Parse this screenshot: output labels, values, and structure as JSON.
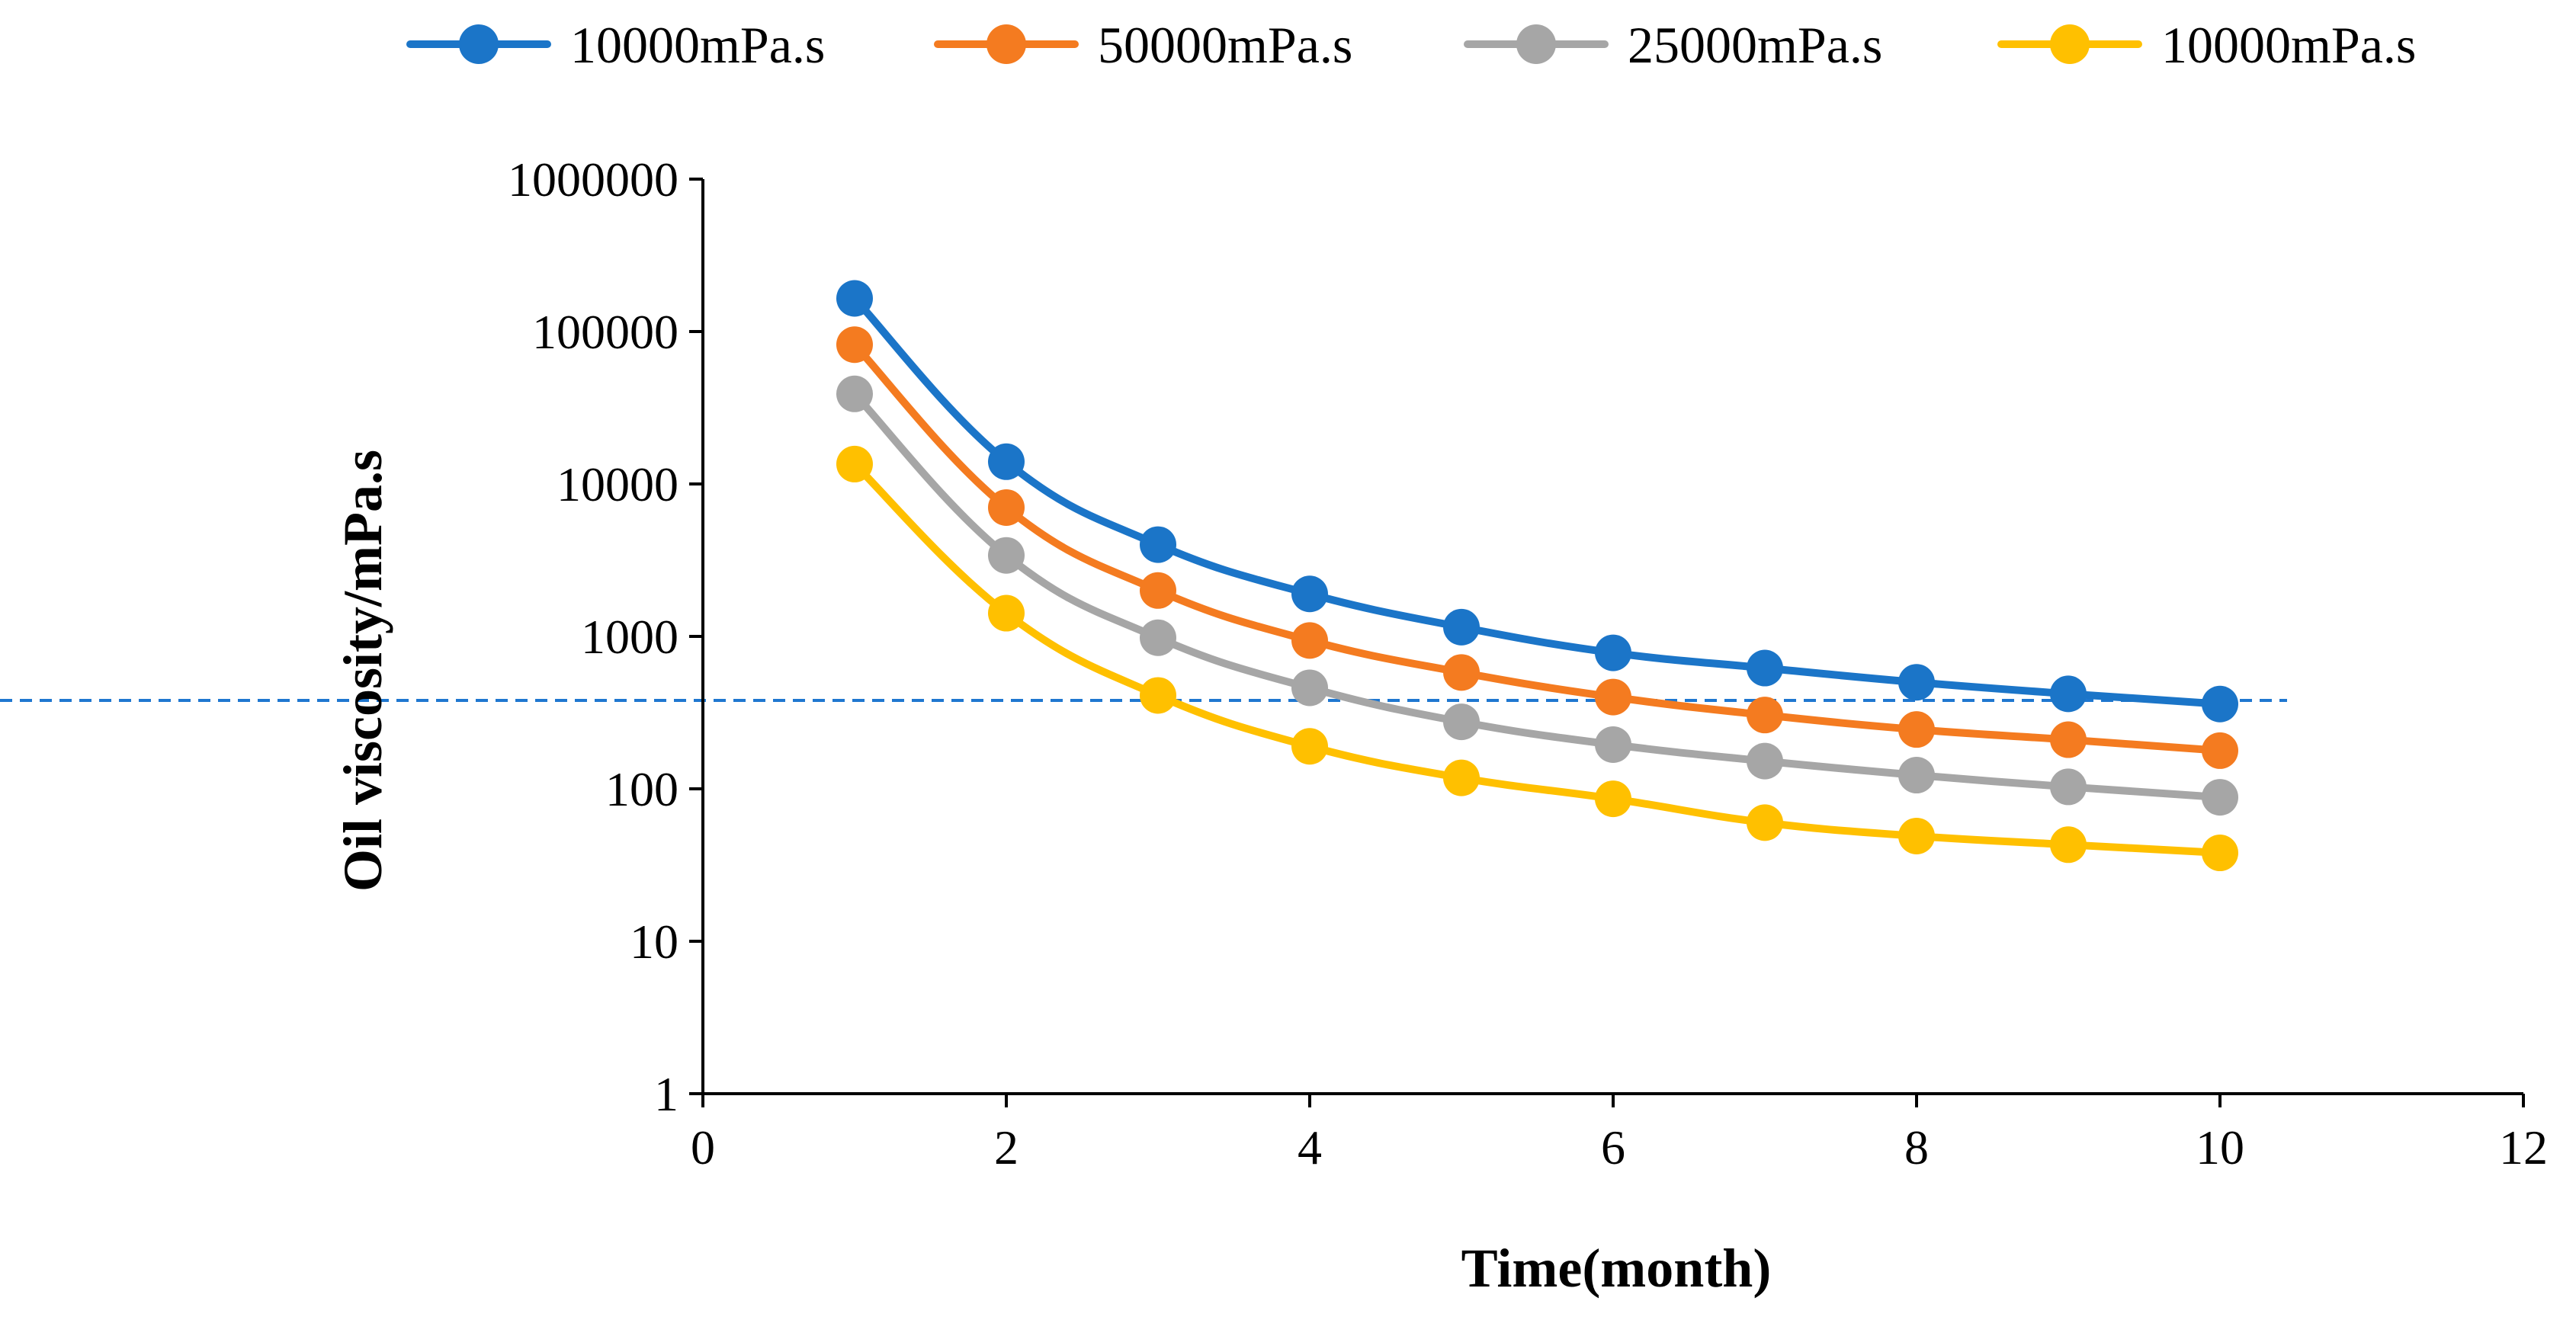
{
  "chart_data": {
    "type": "line",
    "title": "",
    "xlabel": "Time(month)",
    "ylabel": "Oil viscosity/mPa.s",
    "xlim": [
      0,
      12
    ],
    "ylim": [
      1,
      1000000
    ],
    "yscale": "log",
    "xticks": [
      0,
      2,
      4,
      6,
      8,
      10,
      12
    ],
    "xtick_labels": [
      "0",
      "2",
      "4",
      "6",
      "8",
      "10",
      "12"
    ],
    "yticks": [
      1,
      10,
      100,
      1000,
      10000,
      100000,
      1000000
    ],
    "ytick_labels": [
      "1",
      "10",
      "100",
      "1000",
      "10000",
      "100000",
      "1000000"
    ],
    "grid": false,
    "legend_position": "top",
    "reference_line": {
      "y": 380,
      "style": "dashed",
      "color": "#1f77d0"
    },
    "x": [
      1,
      2,
      3,
      4,
      5,
      6,
      7,
      8,
      9,
      10
    ],
    "series": [
      {
        "name": "10000mPa.s",
        "color": "#1b75c8",
        "values": [
          165000,
          14000,
          4000,
          1900,
          1150,
          780,
          620,
          500,
          420,
          360
        ]
      },
      {
        "name": "50000mPa.s",
        "color": "#f47b20",
        "values": [
          82000,
          7000,
          2000,
          940,
          580,
          400,
          305,
          245,
          210,
          178
        ]
      },
      {
        "name": "25000mPa.s",
        "color": "#a6a6a6",
        "values": [
          39000,
          3400,
          980,
          460,
          275,
          195,
          152,
          123,
          103,
          88
        ]
      },
      {
        "name": "10000mPa.s",
        "color": "#ffc000",
        "values": [
          13500,
          1420,
          410,
          190,
          118,
          86,
          60,
          49,
          43,
          38
        ]
      }
    ]
  }
}
